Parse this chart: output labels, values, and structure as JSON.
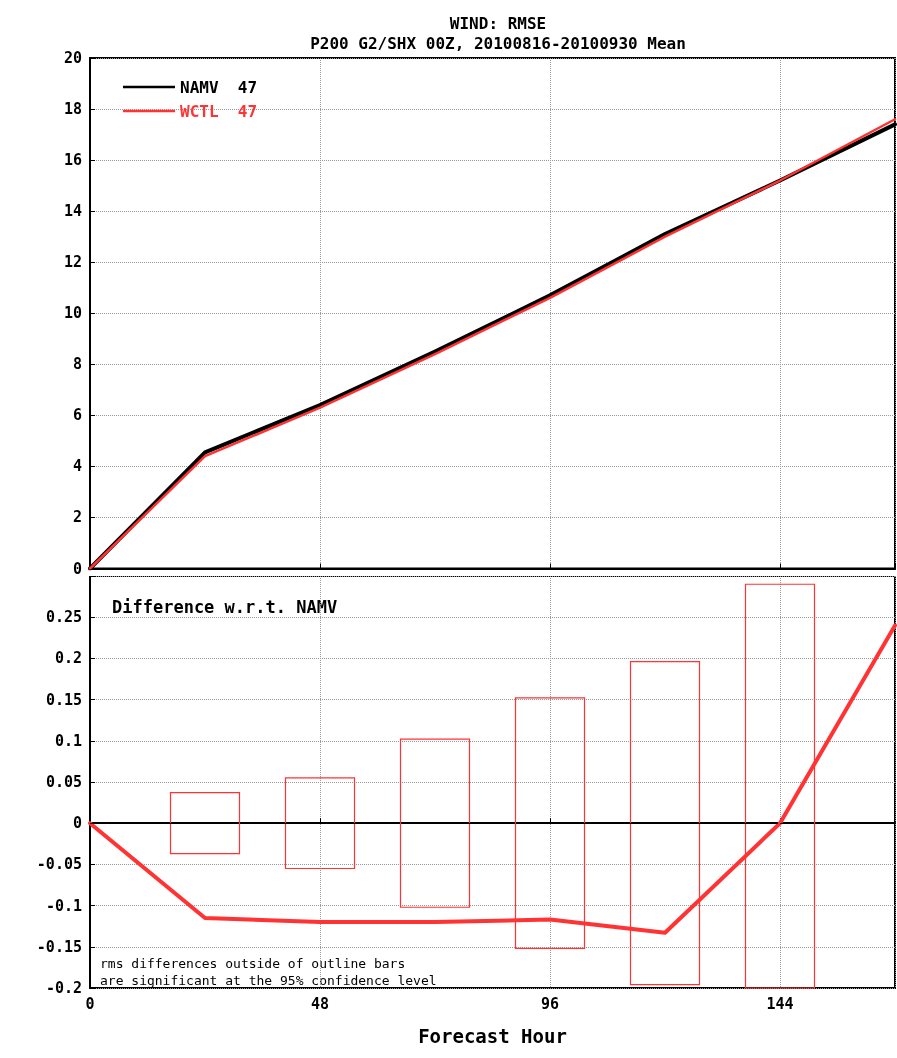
{
  "chart_data": [
    {
      "type": "line",
      "title": "WIND: RMSE",
      "subtitle": "P200 G2/SHX 00Z, 20100816-20100930 Mean",
      "x": [
        0,
        24,
        48,
        72,
        96,
        120,
        144,
        168
      ],
      "series": [
        {
          "name": "NAMV  47",
          "color": "#000000",
          "values": [
            0,
            4.55,
            6.4,
            8.5,
            10.7,
            13.1,
            15.2,
            17.4
          ]
        },
        {
          "name": "WCTL  47",
          "color": "#ff3333",
          "values": [
            0,
            4.4,
            6.3,
            8.4,
            10.6,
            13.0,
            15.2,
            17.6
          ]
        }
      ],
      "xlim": [
        0,
        168
      ],
      "xticks": [
        0,
        48,
        96,
        144
      ],
      "ylim": [
        0,
        20
      ],
      "yticks": [
        0,
        2,
        4,
        6,
        8,
        10,
        12,
        14,
        16,
        18,
        20
      ],
      "grid": true,
      "legend": "top left",
      "tick_labels": "y",
      "line_style": "solid"
    },
    {
      "type": "line",
      "xlabel": "Forecast Hour",
      "x": [
        0,
        24,
        48,
        72,
        96,
        120,
        144,
        168
      ],
      "series": [
        {
          "color": "#ff3333",
          "values": [
            0,
            -0.115,
            -0.12,
            -0.12,
            -0.117,
            -0.133,
            0,
            0.24
          ]
        },
        {
          "type": "bar",
          "color": "#ff3333",
          "x": [
            24,
            48,
            72,
            96,
            120,
            144
          ],
          "base": [
            -0.037,
            -0.055,
            -0.102,
            -0.152,
            -0.196,
            -0.2
          ],
          "values": [
            0.074,
            0.11,
            0.204,
            0.304,
            0.392,
            0.49
          ]
        }
      ],
      "xlim": [
        0,
        168
      ],
      "xticks": [
        0,
        48,
        96,
        144
      ],
      "ylim": [
        -0.2,
        0.3
      ],
      "yticks": [
        -0.2,
        -0.15,
        -0.1,
        -0.05,
        0,
        0.05,
        0.1,
        0.15,
        0.2,
        0.25
      ],
      "grid": true,
      "line_style": "solid",
      "ref_lines": [
        {
          "axis": "y",
          "value": 0,
          "label": null,
          "color": "#000000",
          "line_style": "dashed"
        }
      ],
      "annotations": [
        "Difference w.r.t. NAMV",
        "rms differences outside of outline bars\nare significant at the 95% confidence level"
      ]
    }
  ]
}
